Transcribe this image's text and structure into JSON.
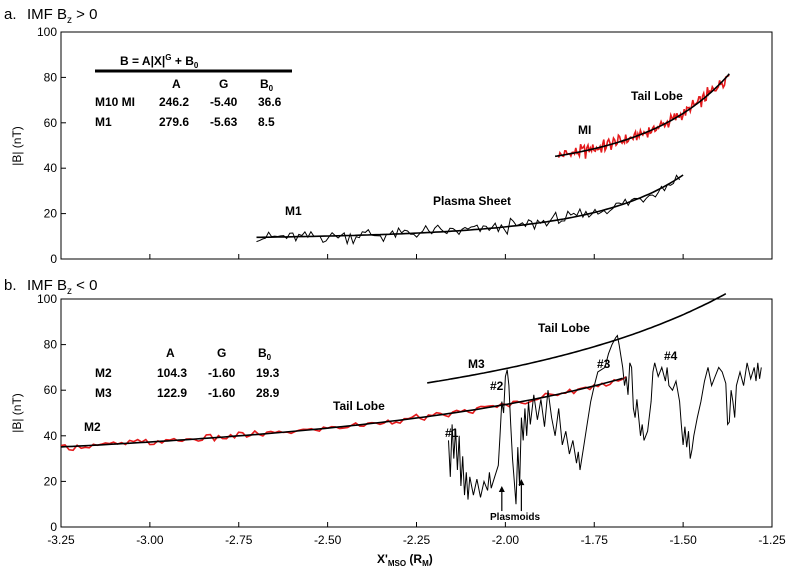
{
  "chart_data": [
    {
      "type": "line",
      "panel_label": "a.",
      "title": "IMF B₂ > 0",
      "title_main": "IMF B",
      "title_sub": "z",
      "title_rest": " > 0",
      "ylabel": "|B| (nT)",
      "ylim": [
        0,
        100
      ],
      "yticks": [
        "0",
        "20",
        "40",
        "60",
        "80",
        "100"
      ],
      "xlim": [
        -3.25,
        -1.25
      ],
      "table": {
        "equation": "B = A|X|G + B0",
        "eq_a": "B = A|X|",
        "eq_g": "G",
        "eq_b": " + B",
        "eq_0": "0",
        "headers": [
          "A",
          "G",
          "B0"
        ],
        "rows": [
          {
            "name": "M10 MI",
            "A": "246.2",
            "G": "-5.40",
            "B0": "36.6"
          },
          {
            "name": "M1",
            "A": "279.6",
            "G": "-5.63",
            "B0": "8.5"
          }
        ]
      },
      "annotations": {
        "tail_lobe": "Tail Lobe",
        "mi": "MI",
        "plasma_sheet": "Plasma Sheet",
        "m1": "M1"
      },
      "series": [
        {
          "name": "MI",
          "color": "#e41a1c",
          "x_range": [
            -1.85,
            -1.37
          ],
          "base": [
            36.6,
            246.2,
            -5.4
          ],
          "noise": 2.5
        },
        {
          "name": "M1",
          "color": "#000000",
          "x_range": [
            -2.7,
            -1.51
          ],
          "base": [
            8.5,
            279.6,
            -5.63
          ],
          "noise": 2.5
        }
      ],
      "fits": [
        {
          "name": "M10 MI",
          "x_range": [
            -1.86,
            -1.37
          ],
          "A": 246.2,
          "G": -5.4,
          "B0": 36.6
        },
        {
          "name": "M1",
          "x_range": [
            -2.7,
            -1.5
          ],
          "A": 279.6,
          "G": -5.63,
          "B0": 8.5
        }
      ]
    },
    {
      "type": "line",
      "panel_label": "b.",
      "title": "IMF B₂ < 0",
      "title_main": "IMF B",
      "title_sub": "z",
      "title_rest": " < 0",
      "ylabel": "|B| (nT)",
      "xlabel": "X'MSO (RM)",
      "xlabel_main": "X'",
      "xlabel_sub": "MSO",
      "xlabel_rest": " (R",
      "xlabel_sub2": "M",
      "xlabel_end": ")",
      "ylim": [
        0,
        100
      ],
      "yticks": [
        "0",
        "20",
        "40",
        "60",
        "80",
        "100"
      ],
      "xlim": [
        -3.25,
        -1.25
      ],
      "xticks": [
        "-3.25",
        "-3.00",
        "-2.75",
        "-2.50",
        "-2.25",
        "-2.00",
        "-1.75",
        "-1.50",
        "-1.25"
      ],
      "table": {
        "headers": [
          "A",
          "G",
          "B0"
        ],
        "rows": [
          {
            "name": "M2",
            "A": "104.3",
            "G": "-1.60",
            "B0": "19.3"
          },
          {
            "name": "M3",
            "A": "122.9",
            "G": "-1.60",
            "B0": "28.9"
          }
        ]
      },
      "annotations": {
        "m2": "M2",
        "m3": "M3",
        "tail_lobe_mid": "Tail Lobe",
        "tail_lobe_top": "Tail Lobe",
        "n1": "#1",
        "n2": "#2",
        "n3": "#3",
        "n4": "#4",
        "plasmoids": "Plasmoids"
      },
      "series": [
        {
          "name": "M2",
          "color": "#e41a1c",
          "x_range": [
            -3.25,
            -1.66
          ],
          "base": [
            19.3,
            104.3,
            -1.6
          ],
          "noise": 1.2
        },
        {
          "name": "Plasma sheet crossing",
          "color": "#000000",
          "points": [
            [
              -2.16,
              38
            ],
            [
              -2.155,
              22
            ],
            [
              -2.15,
              45
            ],
            [
              -2.145,
              30
            ],
            [
              -2.14,
              43
            ],
            [
              -2.135,
              25
            ],
            [
              -2.13,
              40
            ],
            [
              -2.125,
              18
            ],
            [
              -2.12,
              31
            ],
            [
              -2.115,
              14
            ],
            [
              -2.11,
              24
            ],
            [
              -2.105,
              12
            ],
            [
              -2.1,
              22
            ],
            [
              -2.09,
              14
            ],
            [
              -2.08,
              21
            ],
            [
              -2.07,
              13
            ],
            [
              -2.06,
              20
            ],
            [
              -2.05,
              16
            ],
            [
              -2.045,
              24
            ],
            [
              -2.04,
              17
            ],
            [
              -2.03,
              22
            ],
            [
              -2.02,
              27
            ],
            [
              -2.015,
              40
            ],
            [
              -2.01,
              55
            ],
            [
              -2.005,
              50
            ],
            [
              -2.0,
              66
            ],
            [
              -1.995,
              69
            ],
            [
              -1.99,
              62
            ],
            [
              -1.985,
              45
            ],
            [
              -1.98,
              30
            ],
            [
              -1.975,
              20
            ],
            [
              -1.97,
              10
            ],
            [
              -1.965,
              35
            ],
            [
              -1.96,
              18
            ],
            [
              -1.955,
              48
            ],
            [
              -1.95,
              38
            ],
            [
              -1.945,
              52
            ],
            [
              -1.94,
              40
            ],
            [
              -1.935,
              55
            ],
            [
              -1.93,
              45
            ],
            [
              -1.92,
              58
            ],
            [
              -1.91,
              47
            ],
            [
              -1.9,
              56
            ],
            [
              -1.89,
              44
            ],
            [
              -1.88,
              60
            ],
            [
              -1.87,
              48
            ],
            [
              -1.86,
              40
            ],
            [
              -1.85,
              52
            ],
            [
              -1.84,
              36
            ],
            [
              -1.83,
              42
            ],
            [
              -1.82,
              32
            ],
            [
              -1.81,
              38
            ],
            [
              -1.8,
              28
            ],
            [
              -1.795,
              33
            ],
            [
              -1.79,
              25
            ],
            [
              -1.78,
              35
            ],
            [
              -1.77,
              45
            ],
            [
              -1.76,
              55
            ],
            [
              -1.75,
              62
            ],
            [
              -1.74,
              68
            ],
            [
              -1.72,
              70
            ],
            [
              -1.71,
              76
            ],
            [
              -1.7,
              80
            ],
            [
              -1.69,
              83
            ],
            [
              -1.685,
              84
            ],
            [
              -1.68,
              80
            ],
            [
              -1.675,
              75
            ],
            [
              -1.67,
              70
            ],
            [
              -1.665,
              62
            ],
            [
              -1.66,
              66
            ],
            [
              -1.655,
              58
            ],
            [
              -1.65,
              72
            ],
            [
              -1.645,
              70
            ],
            [
              -1.64,
              52
            ],
            [
              -1.635,
              48
            ],
            [
              -1.63,
              56
            ],
            [
              -1.62,
              40
            ],
            [
              -1.615,
              45
            ],
            [
              -1.61,
              38
            ],
            [
              -1.6,
              42
            ],
            [
              -1.59,
              55
            ],
            [
              -1.585,
              68
            ],
            [
              -1.58,
              72
            ],
            [
              -1.57,
              66
            ],
            [
              -1.56,
              70
            ],
            [
              -1.55,
              64
            ],
            [
              -1.545,
              70
            ],
            [
              -1.54,
              62
            ],
            [
              -1.53,
              60
            ],
            [
              -1.52,
              64
            ],
            [
              -1.51,
              55
            ],
            [
              -1.505,
              45
            ],
            [
              -1.5,
              36
            ],
            [
              -1.495,
              44
            ],
            [
              -1.49,
              35
            ],
            [
              -1.485,
              42
            ],
            [
              -1.48,
              30
            ],
            [
              -1.475,
              34
            ],
            [
              -1.47,
              40
            ],
            [
              -1.46,
              48
            ],
            [
              -1.45,
              55
            ],
            [
              -1.44,
              64
            ],
            [
              -1.43,
              70
            ],
            [
              -1.42,
              62
            ],
            [
              -1.41,
              66
            ],
            [
              -1.4,
              70
            ],
            [
              -1.39,
              68
            ],
            [
              -1.38,
              63
            ],
            [
              -1.375,
              45
            ],
            [
              -1.37,
              46
            ],
            [
              -1.365,
              60
            ],
            [
              -1.36,
              55
            ],
            [
              -1.355,
              48
            ],
            [
              -1.35,
              62
            ],
            [
              -1.34,
              68
            ],
            [
              -1.33,
              62
            ],
            [
              -1.32,
              72
            ],
            [
              -1.31,
              65
            ],
            [
              -1.3,
              70
            ],
            [
              -1.295,
              64
            ],
            [
              -1.29,
              72
            ],
            [
              -1.285,
              65
            ],
            [
              -1.28,
              70
            ]
          ]
        }
      ],
      "fits": [
        {
          "name": "M2",
          "x_range": [
            -3.25,
            -1.67
          ],
          "A": 104.3,
          "G": -1.6,
          "B0": 19.3
        },
        {
          "name": "M3",
          "x_range": [
            -2.22,
            -1.38
          ],
          "A": 122.9,
          "G": -1.6,
          "B0": 28.9
        }
      ],
      "arrows": [
        {
          "x": -2.01,
          "y_from": 7,
          "y_to": 18
        },
        {
          "x": -1.955,
          "y_from": 7,
          "y_to": 21
        }
      ]
    }
  ]
}
